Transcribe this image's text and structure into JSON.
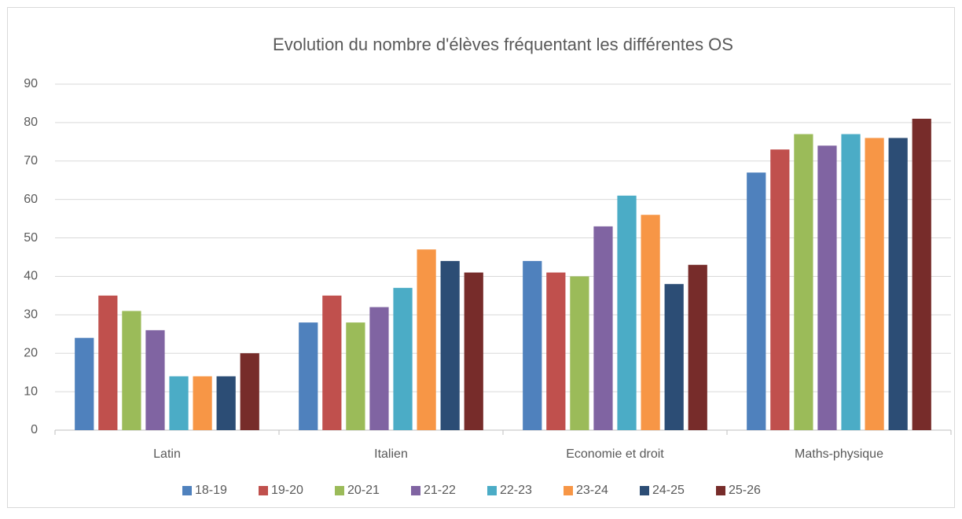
{
  "chart_data": {
    "type": "bar",
    "title": "Evolution du nombre d'élèves fréquentant les différentes OS",
    "categories": [
      "Latin",
      "Italien",
      "Economie et droit",
      "Maths-physique"
    ],
    "series": [
      {
        "name": "18-19",
        "color": "#4f81bd",
        "values": [
          24,
          28,
          44,
          67
        ]
      },
      {
        "name": "19-20",
        "color": "#c0504d",
        "values": [
          35,
          35,
          41,
          73
        ]
      },
      {
        "name": "20-21",
        "color": "#9bbb59",
        "values": [
          31,
          28,
          40,
          77
        ]
      },
      {
        "name": "21-22",
        "color": "#8064a2",
        "values": [
          26,
          32,
          53,
          74
        ]
      },
      {
        "name": "22-23",
        "color": "#4bacc6",
        "values": [
          14,
          37,
          61,
          77
        ]
      },
      {
        "name": "23-24",
        "color": "#f79646",
        "values": [
          14,
          47,
          56,
          76
        ]
      },
      {
        "name": "24-25",
        "color": "#2c4d75",
        "values": [
          14,
          44,
          38,
          76
        ]
      },
      {
        "name": "25-26",
        "color": "#772c2a",
        "values": [
          20,
          41,
          43,
          81
        ]
      }
    ],
    "ylim": [
      0,
      90
    ],
    "yticks": [
      0,
      10,
      20,
      30,
      40,
      50,
      60,
      70,
      80,
      90
    ],
    "grid": true,
    "legend": "bottom"
  }
}
